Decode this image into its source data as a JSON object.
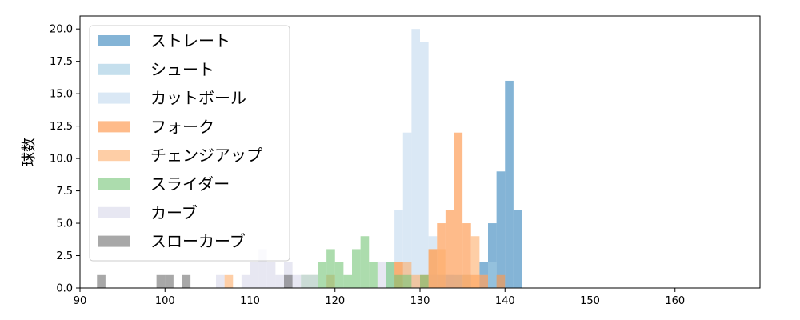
{
  "chart_data": {
    "type": "histogram",
    "title": "",
    "xlabel": "",
    "ylabel": "球数",
    "xlim": [
      90,
      170
    ],
    "ylim": [
      0,
      21
    ],
    "bin_width": 1,
    "x_ticks": [
      90,
      100,
      110,
      120,
      130,
      140,
      150,
      160
    ],
    "y_ticks": [
      "0.0",
      "2.5",
      "5.0",
      "7.5",
      "10.0",
      "12.5",
      "15.0",
      "17.5",
      "20.0"
    ],
    "legend_position": "upper-left",
    "series": [
      {
        "name": "ストレート",
        "color": "#1f77b4",
        "opacity": 0.55,
        "bins": [
          [
            137,
            2
          ],
          [
            138,
            5
          ],
          [
            139,
            9
          ],
          [
            140,
            16
          ],
          [
            141,
            6
          ]
        ]
      },
      {
        "name": "シュート",
        "color": "#9ecae1",
        "opacity": 0.6,
        "bins": [
          [
            131,
            1
          ],
          [
            132,
            1
          ],
          [
            133,
            1
          ],
          [
            134,
            1
          ],
          [
            135,
            1
          ],
          [
            138,
            2
          ],
          [
            139,
            1
          ]
        ]
      },
      {
        "name": "カットボール",
        "color": "#c6dbef",
        "opacity": 0.65,
        "bins": [
          [
            126,
            2
          ],
          [
            127,
            6
          ],
          [
            128,
            12
          ],
          [
            129,
            20
          ],
          [
            130,
            19
          ],
          [
            131,
            4
          ],
          [
            132,
            1
          ],
          [
            133,
            1
          ],
          [
            137,
            1
          ]
        ]
      },
      {
        "name": "フォーク",
        "color": "#fd8d3c",
        "opacity": 0.6,
        "bins": [
          [
            127,
            2
          ],
          [
            130,
            1
          ],
          [
            131,
            3
          ],
          [
            132,
            5
          ],
          [
            133,
            6
          ],
          [
            134,
            12
          ],
          [
            135,
            5
          ],
          [
            136,
            1
          ],
          [
            137,
            1
          ],
          [
            139,
            1
          ]
        ]
      },
      {
        "name": "チェンジアップ",
        "color": "#fdae6b",
        "opacity": 0.6,
        "bins": [
          [
            107,
            1
          ],
          [
            119,
            1
          ],
          [
            127,
            2
          ],
          [
            128,
            2
          ],
          [
            129,
            1
          ],
          [
            131,
            3
          ],
          [
            132,
            3
          ],
          [
            135,
            1
          ],
          [
            136,
            4
          ]
        ]
      },
      {
        "name": "スライダー",
        "color": "#74c476",
        "opacity": 0.6,
        "bins": [
          [
            116,
            1
          ],
          [
            117,
            1
          ],
          [
            118,
            2
          ],
          [
            119,
            3
          ],
          [
            120,
            2
          ],
          [
            121,
            1
          ],
          [
            122,
            3
          ],
          [
            123,
            4
          ],
          [
            124,
            2
          ],
          [
            126,
            2
          ],
          [
            127,
            1
          ],
          [
            128,
            1
          ],
          [
            130,
            1
          ]
        ]
      },
      {
        "name": "カーブ",
        "color": "#dadaeb",
        "opacity": 0.65,
        "bins": [
          [
            106,
            1
          ],
          [
            109,
            1
          ],
          [
            110,
            2
          ],
          [
            111,
            3
          ],
          [
            112,
            2
          ],
          [
            113,
            1
          ],
          [
            114,
            2
          ],
          [
            115,
            1
          ],
          [
            116,
            1
          ],
          [
            117,
            1
          ],
          [
            125,
            2
          ]
        ]
      },
      {
        "name": "スローカーブ",
        "color": "#525252",
        "opacity": 0.5,
        "bins": [
          [
            92,
            1
          ],
          [
            99,
            1
          ],
          [
            100,
            1
          ],
          [
            102,
            1
          ],
          [
            114,
            1
          ]
        ]
      }
    ]
  }
}
